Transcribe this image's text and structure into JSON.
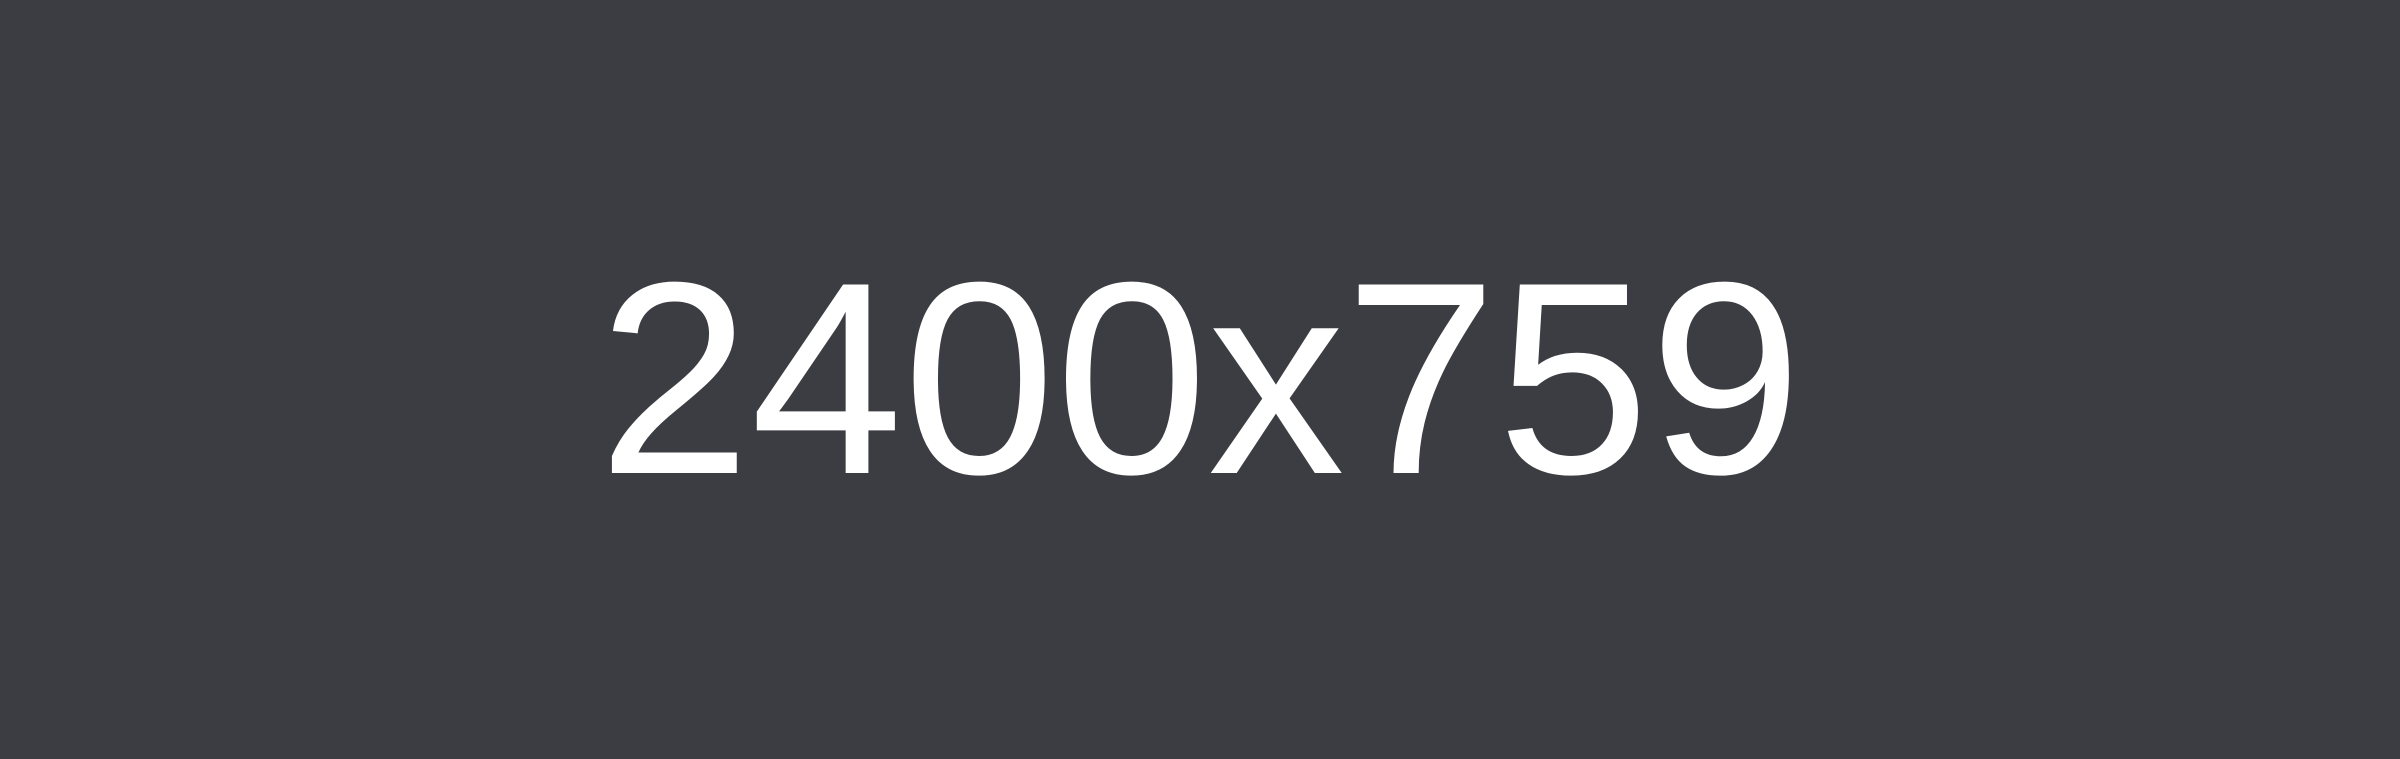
{
  "placeholder": {
    "label": "2400x759",
    "background_color": "#3c3d42",
    "text_color": "#ffffff"
  }
}
